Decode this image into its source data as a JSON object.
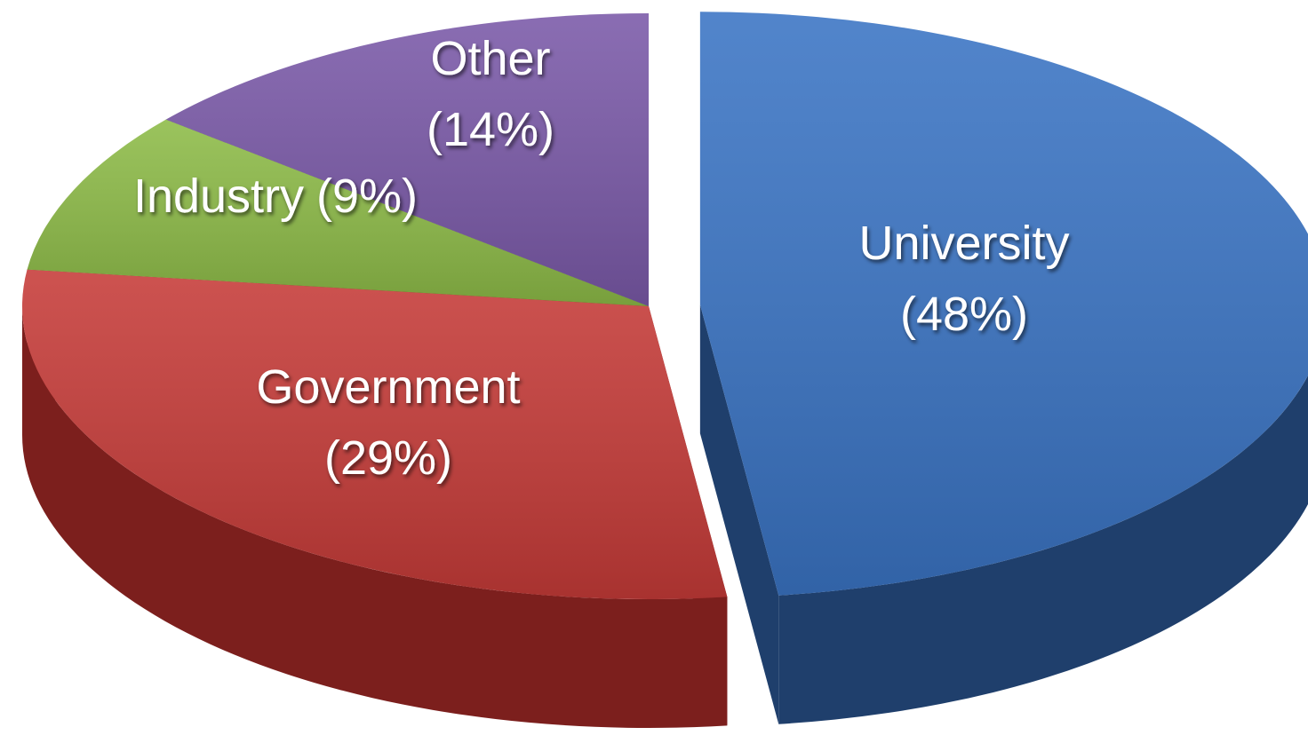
{
  "chart_data": {
    "type": "pie",
    "categories": [
      "University",
      "Government",
      "Industry",
      "Other"
    ],
    "values": [
      48,
      29,
      9,
      14
    ],
    "value_labels": [
      "(48%)",
      "(29%)",
      "(9%)",
      "(14%)"
    ],
    "colors": [
      "#3a74c4",
      "#c63b38",
      "#8dbb47",
      "#7a59a8"
    ],
    "side_colors": [
      "#1f3f6c",
      "#7c1f1d",
      "#3e5519",
      "#3b2a57"
    ],
    "start_angle": 0,
    "direction": "clockwise",
    "exploded": [
      0
    ]
  }
}
